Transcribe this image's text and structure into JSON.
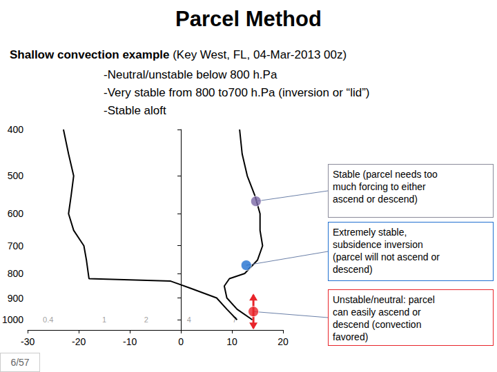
{
  "chart_data": {
    "type": "line",
    "title": "Parcel Method",
    "subtitle": "Shallow convection example (Key West, FL, 04-Mar-2013 00z)",
    "notes": [
      "-Neutral/unstable below 800 h.Pa",
      "-Very stable from 800 to700 h.Pa (inversion or “lid”)",
      "-Stable aloft"
    ],
    "page": "6/57",
    "log": "y",
    "grid": false,
    "xlim": [
      -30,
      20
    ],
    "xticks": [
      -30,
      -20,
      -10,
      0,
      10,
      20
    ],
    "ylim": [
      400,
      1050
    ],
    "yticks": [
      400,
      500,
      600,
      700,
      800,
      900,
      1000
    ],
    "series": [
      {
        "color": "#000000",
        "x": [
          14,
          11,
          9,
          8.5,
          9.5,
          12.5,
          15,
          16,
          15.5,
          15.5,
          14.5,
          13,
          12,
          11.5
        ],
        "y": [
          1000,
          950,
          900,
          850,
          820,
          800,
          750,
          700,
          650,
          600,
          550,
          500,
          450,
          400
        ]
      },
      {
        "color": "#000000",
        "x": [
          11,
          9,
          7,
          2,
          -2,
          -18,
          -18.5,
          -19,
          -21,
          -22,
          -21.5,
          -21,
          -22,
          -23
        ],
        "y": [
          1000,
          950,
          900,
          860,
          830,
          820,
          750,
          700,
          650,
          600,
          550,
          500,
          450,
          400
        ]
      }
    ],
    "mixing_ratio_labels": [
      {
        "text": "0.4",
        "x": -26,
        "y": 1000
      },
      {
        "text": "1",
        "x": -15,
        "y": 1000
      },
      {
        "text": "2",
        "x": -6.8,
        "y": 1000
      },
      {
        "text": "4",
        "x": 1.6,
        "y": 1000
      },
      {
        "text": "7",
        "x": 10.5,
        "y": 1000
      }
    ],
    "annotations": [
      {
        "x": 14.7,
        "y": 565,
        "color": "#7b68a6",
        "marker": "circle",
        "lines": [
          "Stable (parcel needs too",
          "much forcing to either",
          "ascend or descend)"
        ]
      },
      {
        "x": 12.8,
        "y": 769,
        "color": "#1f6fd0",
        "marker": "circle",
        "lines": [
          "Extremely stable,",
          "subsidence inversion",
          "(parcel will not  ascend or",
          "descend)"
        ]
      },
      {
        "x": 14.2,
        "y": 961,
        "color": "#e8242a",
        "marker": "arrows",
        "lines": [
          "Unstable/neutral: parcel",
          "can easily ascend or",
          "descend (convection",
          "favored)"
        ]
      }
    ]
  }
}
